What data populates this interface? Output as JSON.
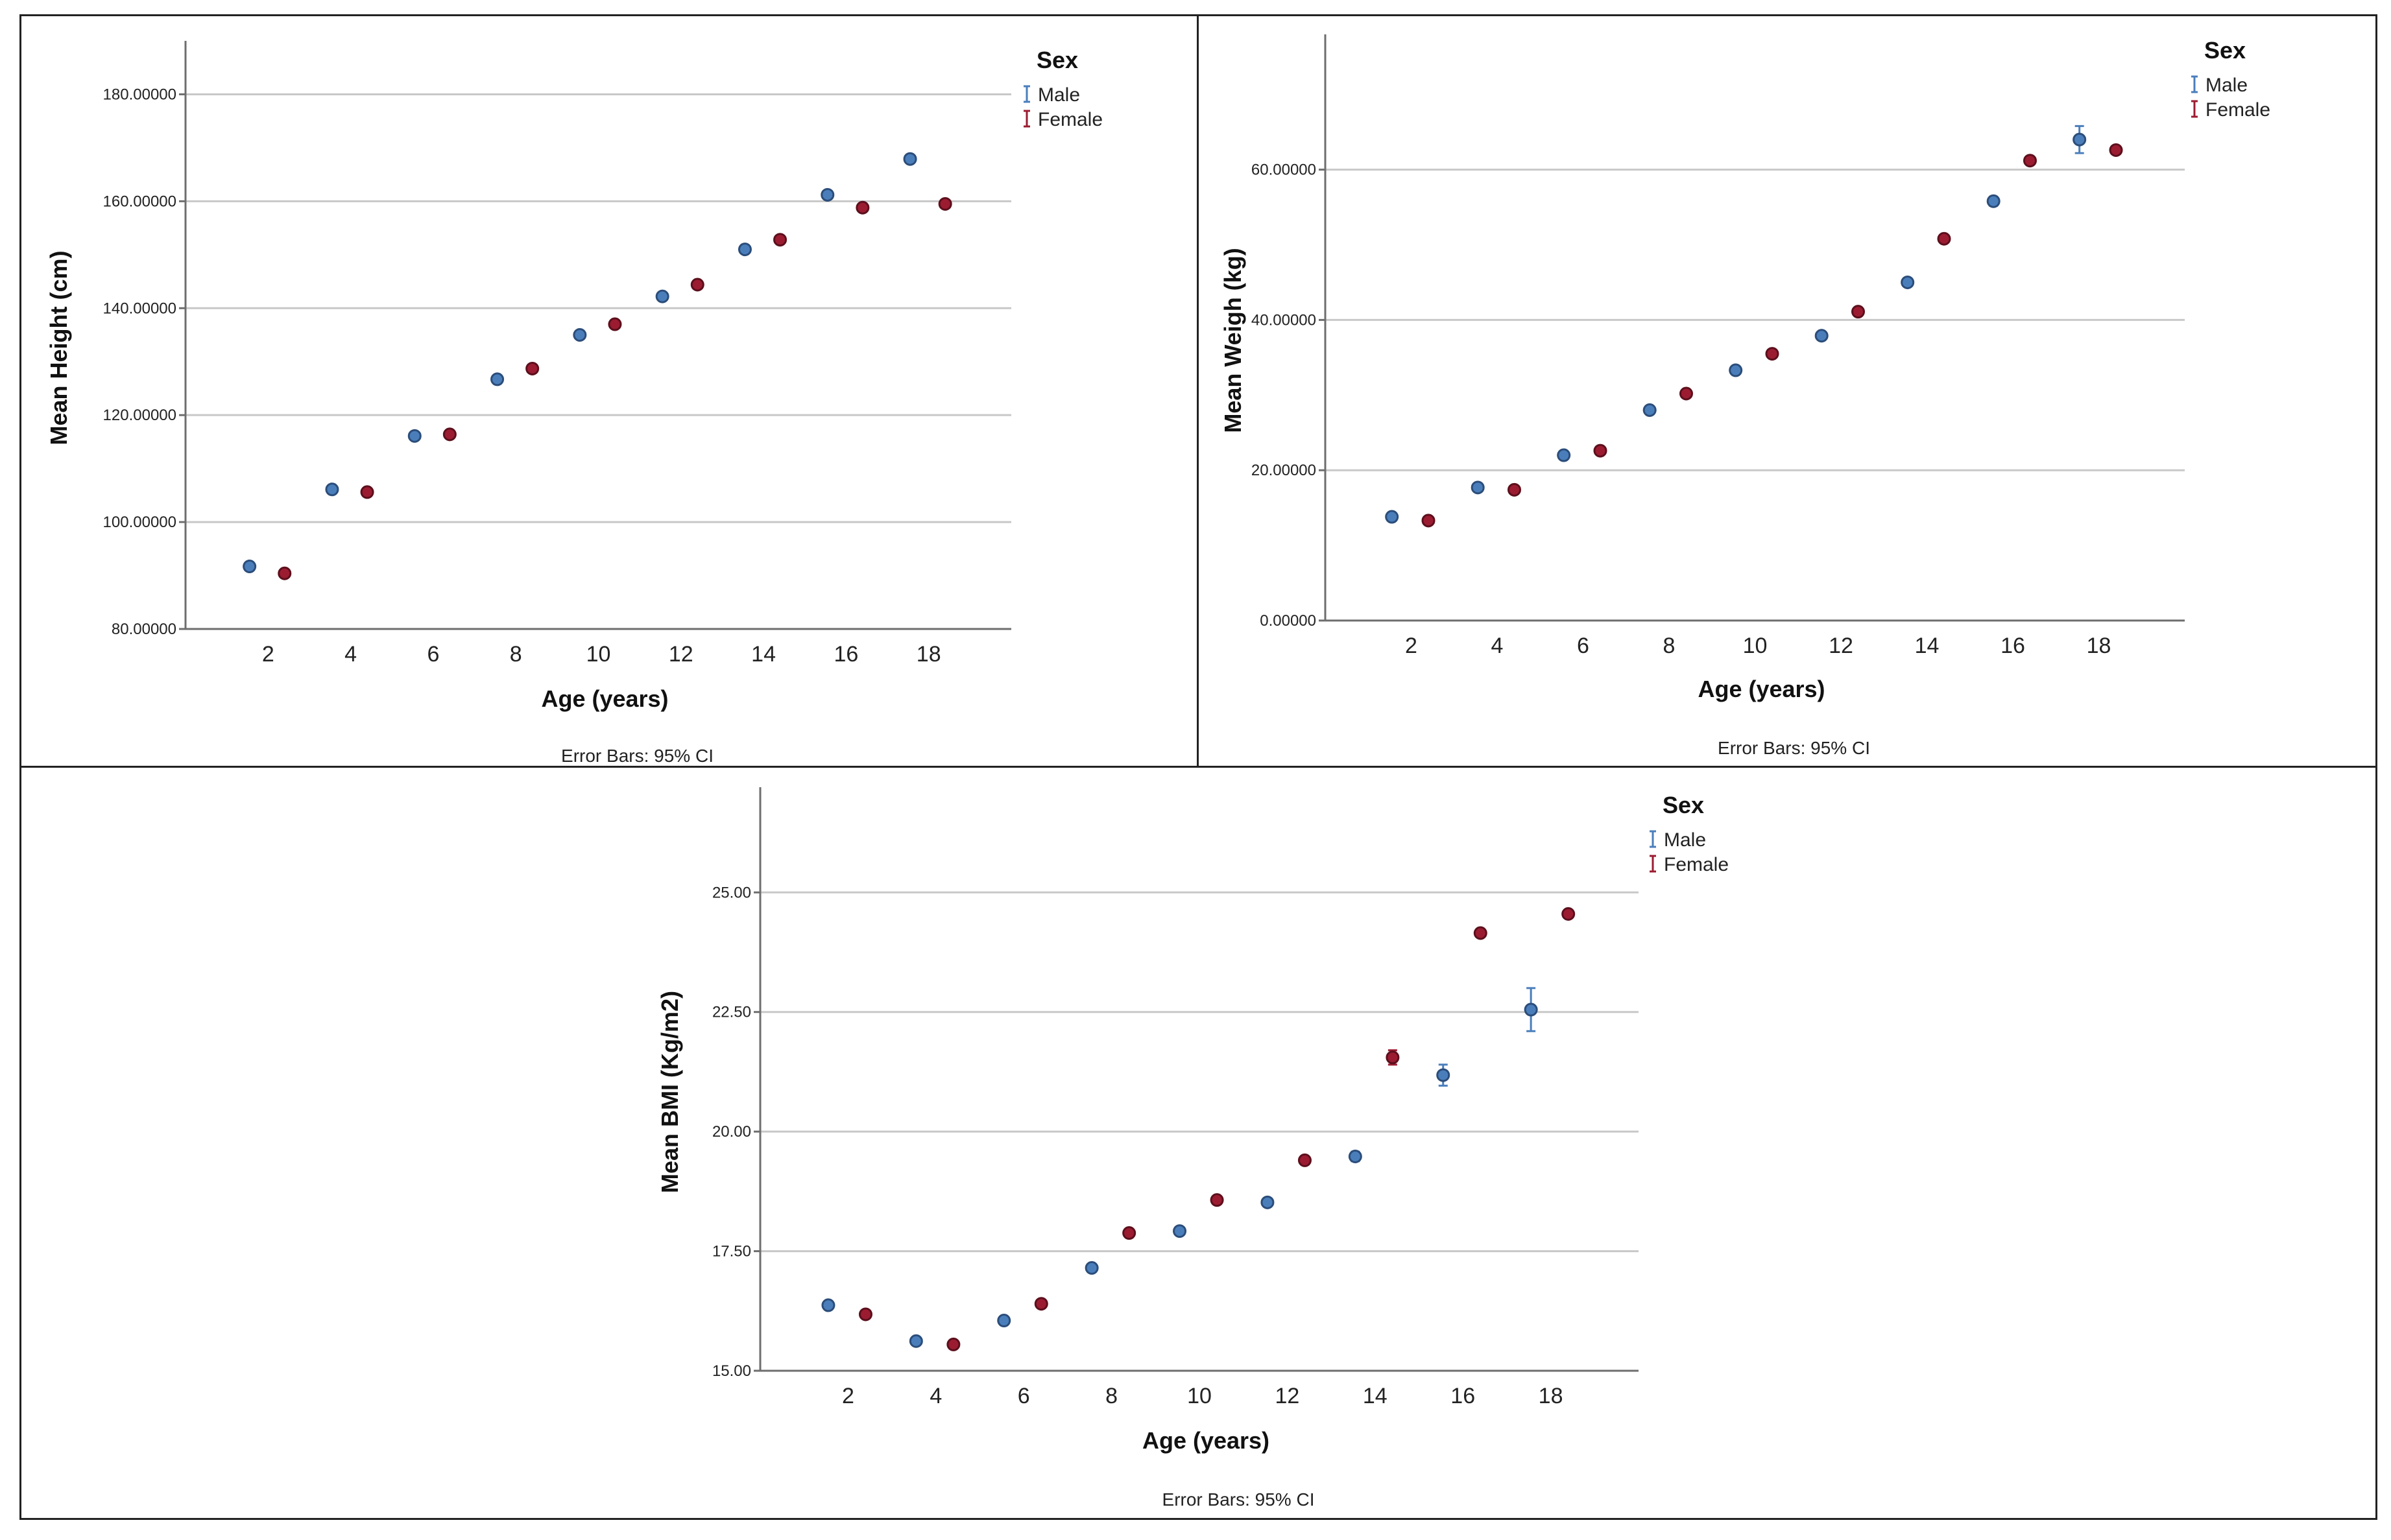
{
  "colors": {
    "male": "#4a7ebb",
    "male_edge": "#2b4d7a",
    "female": "#9b1c31",
    "female_edge": "#5c0f1c"
  },
  "chart_data": [
    {
      "type": "scatter",
      "ylabel": "Mean Height (cm)",
      "xlabel": "Age (years)",
      "footnote": "Error Bars: 95% CI",
      "legend_title": "Sex",
      "x_tick_labels": [
        "2",
        "4",
        "6",
        "8",
        "10",
        "12",
        "14",
        "16",
        "18"
      ],
      "y_tick_labels": [
        "80.00000",
        "100.00000",
        "120.00000",
        "140.00000",
        "160.00000",
        "180.00000"
      ],
      "y_ticks": [
        80,
        100,
        120,
        140,
        160,
        180
      ],
      "ylim": [
        80,
        190
      ],
      "series": [
        {
          "name": "Male",
          "key": "male",
          "x": [
            2,
            4,
            6,
            8,
            10,
            12,
            14,
            16,
            18
          ],
          "values": [
            91.7,
            106.1,
            116.1,
            126.7,
            135.0,
            142.2,
            151.0,
            161.2,
            167.9
          ],
          "ci": [
            0.3,
            0.3,
            0.3,
            0.3,
            0.3,
            0.3,
            0.4,
            0.4,
            0.6
          ]
        },
        {
          "name": "Female",
          "key": "female",
          "x": [
            2,
            4,
            6,
            8,
            10,
            12,
            14,
            16,
            18
          ],
          "values": [
            90.4,
            105.6,
            116.4,
            128.7,
            137.0,
            144.4,
            152.8,
            158.8,
            159.5
          ],
          "ci": [
            0.3,
            0.3,
            0.3,
            0.3,
            0.3,
            0.3,
            0.3,
            0.3,
            0.3
          ]
        }
      ]
    },
    {
      "type": "scatter",
      "ylabel": "Mean Weigh (kg)",
      "xlabel": "Age (years)",
      "footnote": "Error Bars: 95% CI",
      "legend_title": "Sex",
      "x_tick_labels": [
        "2",
        "4",
        "6",
        "8",
        "10",
        "12",
        "14",
        "16",
        "18"
      ],
      "y_tick_labels": [
        "0.00000",
        "20.00000",
        "40.00000",
        "60.00000"
      ],
      "y_ticks": [
        0,
        20,
        40,
        60
      ],
      "ylim": [
        0,
        78
      ],
      "series": [
        {
          "name": "Male",
          "key": "male",
          "x": [
            2,
            4,
            6,
            8,
            10,
            12,
            14,
            16,
            18
          ],
          "values": [
            13.8,
            17.7,
            22.0,
            28.0,
            33.3,
            37.9,
            45.0,
            55.8,
            64.0
          ],
          "ci": [
            0.2,
            0.2,
            0.2,
            0.2,
            0.3,
            0.3,
            0.4,
            0.6,
            1.8
          ]
        },
        {
          "name": "Female",
          "key": "female",
          "x": [
            2,
            4,
            6,
            8,
            10,
            12,
            14,
            16,
            18
          ],
          "values": [
            13.3,
            17.4,
            22.6,
            30.2,
            35.5,
            41.1,
            50.8,
            61.2,
            62.6
          ],
          "ci": [
            0.2,
            0.2,
            0.2,
            0.3,
            0.3,
            0.3,
            0.4,
            0.4,
            0.5
          ]
        }
      ]
    },
    {
      "type": "scatter",
      "ylabel": "Mean BMI (Kg/m2)",
      "xlabel": "Age (years)",
      "footnote": "Error Bars: 95% CI",
      "legend_title": "Sex",
      "x_tick_labels": [
        "2",
        "4",
        "6",
        "8",
        "10",
        "12",
        "14",
        "16",
        "18"
      ],
      "y_tick_labels": [
        "15.00",
        "17.50",
        "20.00",
        "22.50",
        "25.00"
      ],
      "y_ticks": [
        15,
        17.5,
        20,
        22.5,
        25
      ],
      "ylim": [
        15,
        27.2
      ],
      "series": [
        {
          "name": "Male",
          "key": "male",
          "x": [
            2,
            4,
            6,
            8,
            10,
            12,
            14,
            16,
            18
          ],
          "values": [
            16.37,
            15.62,
            16.05,
            17.15,
            17.92,
            18.52,
            19.48,
            21.18,
            22.55
          ],
          "ci": [
            0.05,
            0.05,
            0.05,
            0.06,
            0.07,
            0.08,
            0.1,
            0.22,
            0.45
          ]
        },
        {
          "name": "Female",
          "key": "female",
          "x": [
            2,
            4,
            6,
            8,
            10,
            12,
            14,
            16,
            18
          ],
          "values": [
            16.18,
            15.55,
            16.4,
            17.88,
            18.57,
            19.4,
            21.55,
            24.15,
            24.55
          ],
          "ci": [
            0.05,
            0.05,
            0.05,
            0.06,
            0.06,
            0.08,
            0.15,
            0.08,
            0.08
          ]
        }
      ]
    }
  ]
}
